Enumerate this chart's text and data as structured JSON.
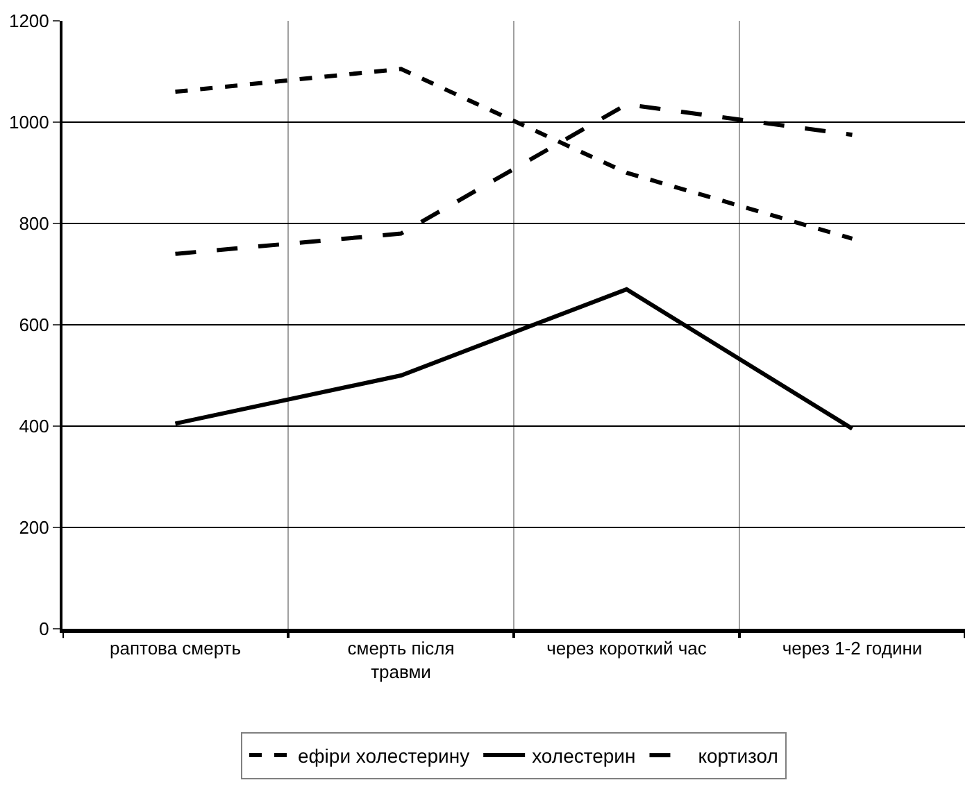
{
  "chart_data": {
    "type": "line",
    "categories": [
      "раптова смерть",
      "смерть після травми",
      "через короткий час",
      "через 1-2 години"
    ],
    "series": [
      {
        "name": "ефіри холестерину",
        "color": "#000000",
        "line_style": "dotted",
        "values": [
          1060,
          1105,
          900,
          770
        ]
      },
      {
        "name": "холестерин",
        "color": "#000000",
        "line_style": "solid",
        "values": [
          405,
          500,
          670,
          395
        ]
      },
      {
        "name": "кортизол",
        "color": "#000000",
        "line_style": "dashed",
        "values": [
          740,
          780,
          1035,
          975
        ]
      }
    ],
    "ylim": [
      0,
      1200
    ],
    "yticks": [
      0,
      200,
      400,
      600,
      800,
      1000,
      1200
    ],
    "grid": true,
    "legend": "bottom",
    "marker": "none"
  }
}
